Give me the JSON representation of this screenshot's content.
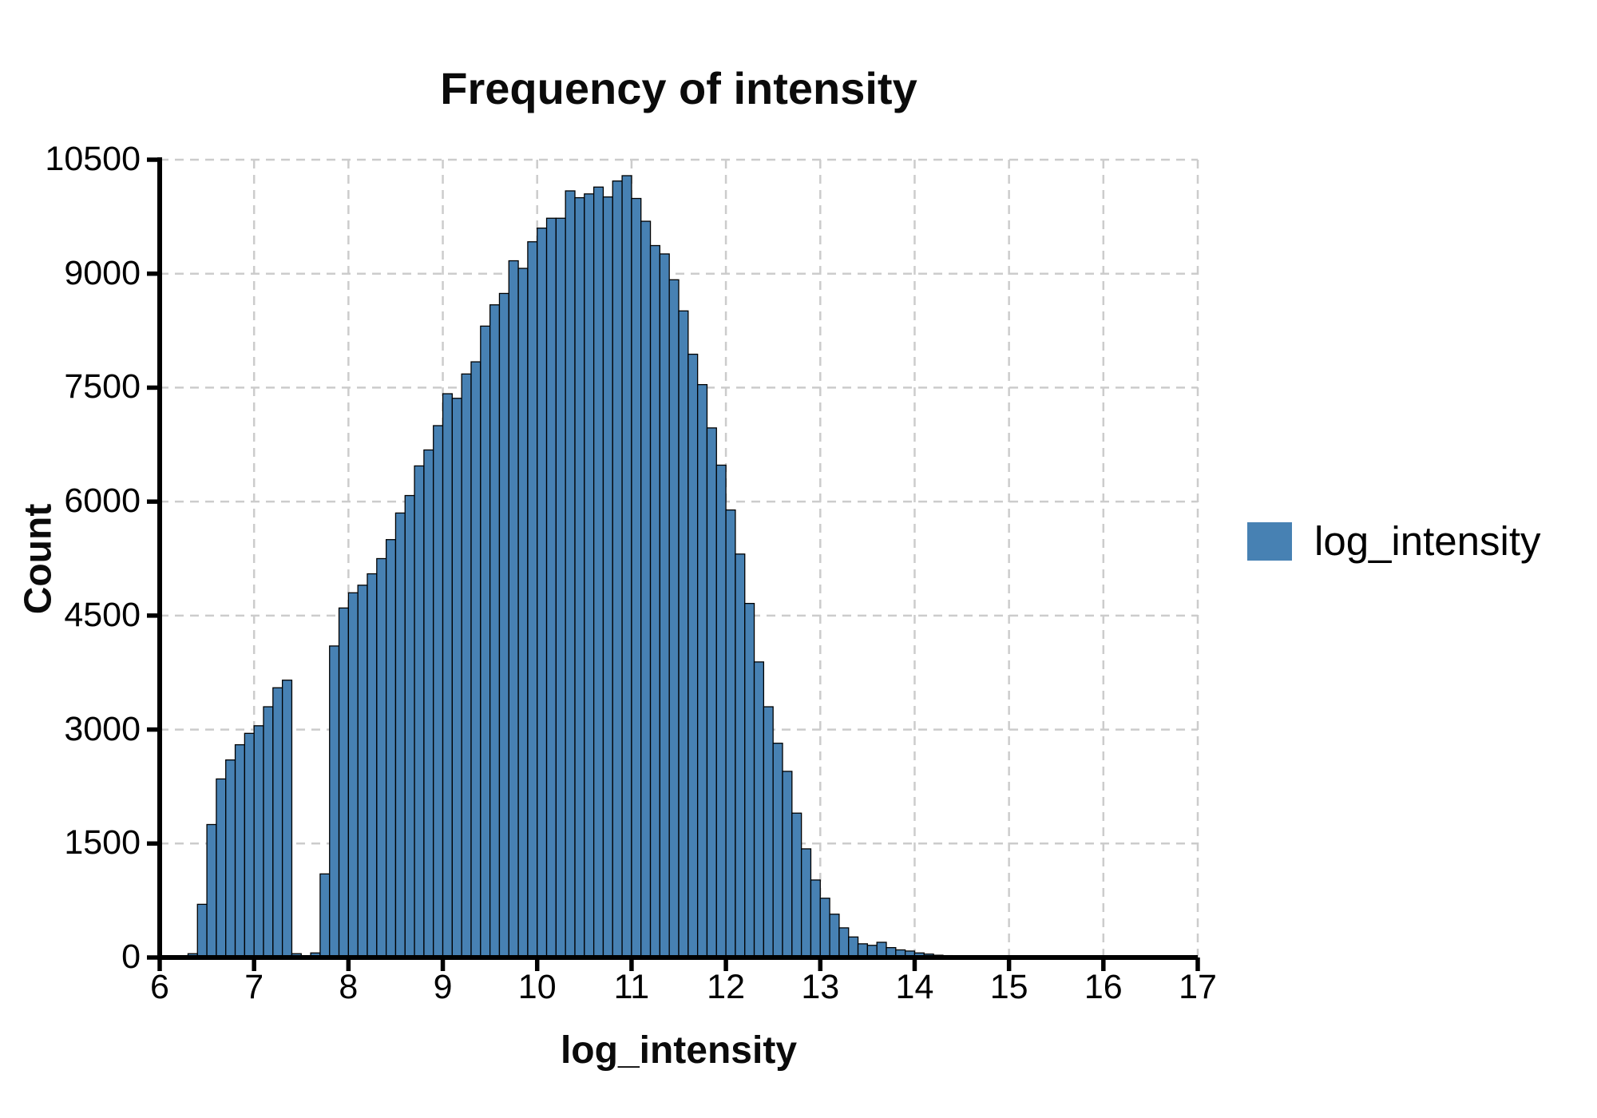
{
  "chart_data": {
    "type": "bar",
    "subtype": "histogram",
    "title": "Frequency of intensity",
    "xlabel": "log_intensity",
    "ylabel": "Count",
    "legend": [
      {
        "label": "log_intensity",
        "color": "#4781b3"
      }
    ],
    "legend_position": "right-center",
    "grid": true,
    "grid_style": "dashed",
    "xlim": [
      6,
      17
    ],
    "ylim": [
      0,
      10500
    ],
    "x_ticks": [
      6,
      7,
      8,
      9,
      10,
      11,
      12,
      13,
      14,
      15,
      16,
      17
    ],
    "y_ticks": [
      0,
      1500,
      3000,
      4500,
      6000,
      7500,
      9000,
      10500
    ],
    "bin_width": 0.1,
    "bin_left_edges": [
      6.3,
      6.4,
      6.5,
      6.6,
      6.7,
      6.8,
      6.9,
      7.0,
      7.1,
      7.2,
      7.3,
      7.4,
      7.5,
      7.6,
      7.7,
      7.8,
      7.9,
      8.0,
      8.1,
      8.2,
      8.3,
      8.4,
      8.5,
      8.6,
      8.7,
      8.8,
      8.9,
      9.0,
      9.1,
      9.2,
      9.3,
      9.4,
      9.5,
      9.6,
      9.7,
      9.8,
      9.9,
      10.0,
      10.1,
      10.2,
      10.3,
      10.4,
      10.5,
      10.6,
      10.7,
      10.8,
      10.9,
      11.0,
      11.1,
      11.2,
      11.3,
      11.4,
      11.5,
      11.6,
      11.7,
      11.8,
      11.9,
      12.0,
      12.1,
      12.2,
      12.3,
      12.4,
      12.5,
      12.6,
      12.7,
      12.8,
      12.9,
      13.0,
      13.1,
      13.2,
      13.3,
      13.4,
      13.5,
      13.6,
      13.7,
      13.8,
      13.9,
      14.0,
      14.1,
      14.2,
      14.3,
      14.4,
      14.5,
      14.6,
      14.7,
      14.8,
      14.9,
      15.0,
      15.1
    ],
    "counts": [
      50,
      700,
      1750,
      2350,
      2600,
      2800,
      2950,
      3050,
      3300,
      3550,
      3650,
      50,
      15,
      60,
      1100,
      4100,
      4600,
      4800,
      4900,
      5050,
      5250,
      5500,
      5850,
      6080,
      6470,
      6680,
      7000,
      7420,
      7360,
      7680,
      7840,
      8310,
      8590,
      8740,
      9170,
      9070,
      9420,
      9600,
      9730,
      9730,
      10090,
      10000,
      10050,
      10140,
      10010,
      10220,
      10290,
      9990,
      9690,
      9370,
      9260,
      8920,
      8510,
      7940,
      7540,
      6970,
      6480,
      5890,
      5310,
      4660,
      3890,
      3300,
      2820,
      2450,
      1900,
      1430,
      1020,
      780,
      570,
      390,
      270,
      180,
      160,
      200,
      130,
      100,
      85,
      60,
      45,
      30,
      25,
      18,
      14,
      10,
      8,
      6,
      5,
      4,
      3
    ]
  },
  "colors": {
    "bar_fill": "#4781b3",
    "bar_edge": "#000000",
    "gridline": "#cccccc",
    "axis": "#000000",
    "text": "#000000",
    "background": "#ffffff"
  }
}
